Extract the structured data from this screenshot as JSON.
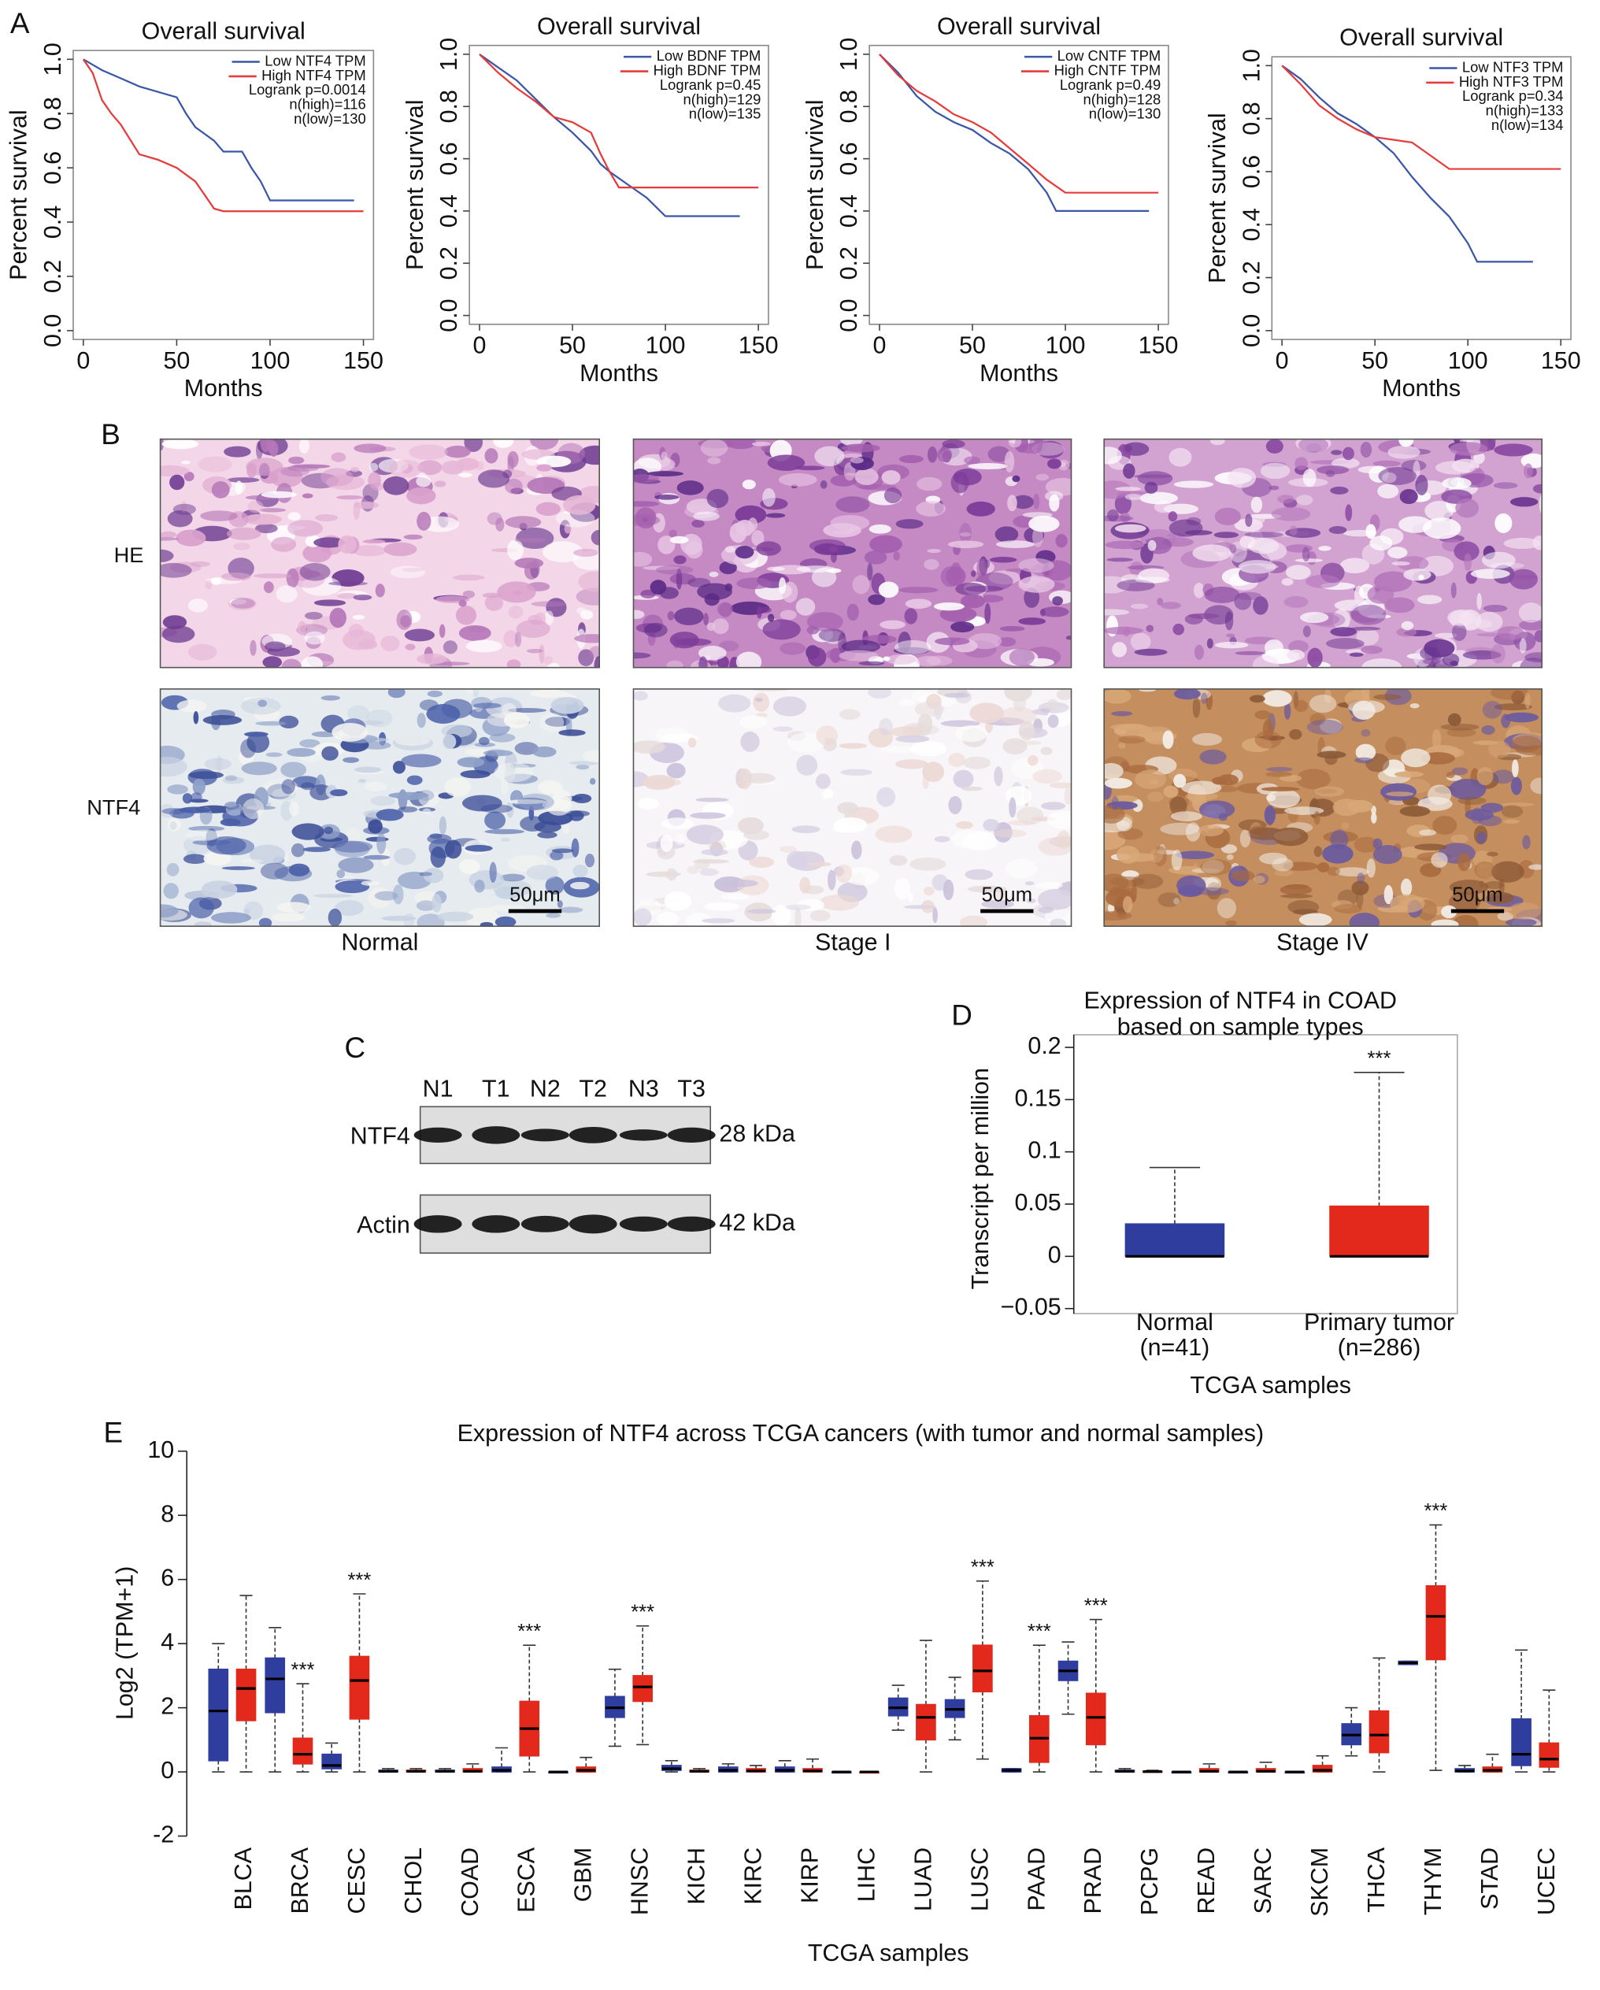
{
  "panel_labels": [
    "A",
    "B",
    "C",
    "D",
    "E"
  ],
  "histology": {
    "rows": [
      "HE",
      "NTF4"
    ],
    "columns": [
      "Normal",
      "Stage I",
      "Stage IV"
    ],
    "scale_bar": "50μm"
  },
  "western_blot": {
    "lanes": [
      "N1",
      "T1",
      "N2",
      "T2",
      "N3",
      "T3"
    ],
    "rows": [
      {
        "label": "NTF4",
        "size": "28 kDa"
      },
      {
        "label": "Actin",
        "size": "42 kDa"
      }
    ]
  },
  "chart_data": [
    {
      "type": "line",
      "title": "Overall survival",
      "xlabel": "Months",
      "ylabel": "Percent survival",
      "xlim": [
        0,
        150
      ],
      "xticks": [
        0,
        50,
        100,
        150
      ],
      "ylim": [
        0,
        1
      ],
      "yticks": [
        {
          "value": 0,
          "label": "0.0"
        },
        0.2,
        0.4,
        0.6,
        0.8,
        {
          "value": 1,
          "label": "1.0"
        }
      ],
      "legend": "upper right",
      "series": [
        {
          "name": "Low NTF4 TPM",
          "color": "#3a56a6",
          "x": [
            0,
            5,
            10,
            20,
            30,
            40,
            50,
            55,
            60,
            70,
            75,
            85,
            90,
            95,
            100,
            145
          ],
          "values": [
            1,
            0.98,
            0.96,
            0.93,
            0.9,
            0.88,
            0.86,
            0.8,
            0.75,
            0.7,
            0.66,
            0.66,
            0.6,
            0.55,
            0.48,
            0.48
          ]
        },
        {
          "name": "High NTF4 TPM",
          "color": "#e63b3b",
          "x": [
            0,
            5,
            10,
            15,
            20,
            30,
            40,
            50,
            60,
            65,
            70,
            75,
            150
          ],
          "values": [
            1,
            0.95,
            0.85,
            0.8,
            0.76,
            0.65,
            0.63,
            0.6,
            0.55,
            0.5,
            0.45,
            0.44,
            0.44
          ]
        }
      ],
      "legend_notes": [
        "Logrank p=0.0014",
        "n(high)=116",
        "n(low)=130"
      ]
    },
    {
      "type": "line",
      "title": "Overall survival",
      "xlabel": "Months",
      "ylabel": "Percent survival",
      "xlim": [
        0,
        150
      ],
      "xticks": [
        0,
        50,
        100,
        150
      ],
      "ylim": [
        0,
        1
      ],
      "yticks": [
        {
          "value": 0,
          "label": "0.0"
        },
        0.2,
        0.4,
        0.6,
        0.8,
        {
          "value": 1,
          "label": "1.0"
        }
      ],
      "legend": "upper right",
      "series": [
        {
          "name": "Low BDNF TPM",
          "color": "#3a56a6",
          "x": [
            0,
            10,
            20,
            30,
            40,
            50,
            60,
            65,
            70,
            80,
            90,
            100,
            140
          ],
          "values": [
            1,
            0.95,
            0.9,
            0.83,
            0.76,
            0.7,
            0.63,
            0.58,
            0.55,
            0.5,
            0.45,
            0.38,
            0.38
          ]
        },
        {
          "name": "High BDNF TPM",
          "color": "#e63b3b",
          "x": [
            0,
            10,
            20,
            30,
            40,
            50,
            60,
            65,
            70,
            75,
            150
          ],
          "values": [
            1,
            0.93,
            0.87,
            0.82,
            0.76,
            0.74,
            0.7,
            0.62,
            0.55,
            0.49,
            0.49
          ]
        }
      ],
      "legend_notes": [
        "Logrank p=0.45",
        "n(high)=129",
        "n(low)=135"
      ]
    },
    {
      "type": "line",
      "title": "Overall survival",
      "xlabel": "Months",
      "ylabel": "Percent survival",
      "xlim": [
        0,
        150
      ],
      "xticks": [
        0,
        50,
        100,
        150
      ],
      "ylim": [
        0,
        1
      ],
      "yticks": [
        {
          "value": 0,
          "label": "0.0"
        },
        0.2,
        0.4,
        0.6,
        0.8,
        {
          "value": 1,
          "label": "1.0"
        }
      ],
      "legend": "upper right",
      "series": [
        {
          "name": "Low CNTF TPM",
          "color": "#3a56a6",
          "x": [
            0,
            10,
            20,
            30,
            40,
            50,
            60,
            70,
            80,
            90,
            95,
            145
          ],
          "values": [
            1,
            0.93,
            0.84,
            0.78,
            0.74,
            0.71,
            0.66,
            0.62,
            0.56,
            0.47,
            0.4,
            0.4
          ]
        },
        {
          "name": "High CNTF TPM",
          "color": "#e63b3b",
          "x": [
            0,
            10,
            20,
            30,
            40,
            50,
            60,
            70,
            80,
            90,
            100,
            150
          ],
          "values": [
            1,
            0.92,
            0.86,
            0.82,
            0.77,
            0.74,
            0.7,
            0.64,
            0.58,
            0.52,
            0.47,
            0.47
          ]
        }
      ],
      "legend_notes": [
        "Logrank p=0.49",
        "n(high)=128",
        "n(low)=130"
      ]
    },
    {
      "type": "line",
      "title": "Overall survival",
      "xlabel": "Months",
      "ylabel": "Percent survival",
      "xlim": [
        0,
        150
      ],
      "xticks": [
        0,
        50,
        100,
        150
      ],
      "ylim": [
        0,
        1
      ],
      "yticks": [
        {
          "value": 0,
          "label": "0.0"
        },
        0.2,
        0.4,
        0.6,
        0.8,
        {
          "value": 1,
          "label": "1.0"
        }
      ],
      "legend": "upper right",
      "series": [
        {
          "name": "Low NTF3 TPM",
          "color": "#3a56a6",
          "x": [
            0,
            10,
            20,
            30,
            40,
            50,
            60,
            70,
            80,
            90,
            95,
            100,
            105,
            135
          ],
          "values": [
            1,
            0.95,
            0.88,
            0.82,
            0.78,
            0.73,
            0.67,
            0.58,
            0.5,
            0.43,
            0.38,
            0.33,
            0.26,
            0.26
          ]
        },
        {
          "name": "High NTF3 TPM",
          "color": "#e63b3b",
          "x": [
            0,
            10,
            20,
            30,
            40,
            50,
            60,
            70,
            80,
            90,
            150
          ],
          "values": [
            1,
            0.93,
            0.85,
            0.8,
            0.76,
            0.73,
            0.72,
            0.71,
            0.66,
            0.61,
            0.61
          ]
        }
      ],
      "legend_notes": [
        "Logrank p=0.34",
        "n(high)=133",
        "n(low)=134"
      ]
    },
    {
      "type": "box",
      "title": [
        "Expression of NTF4 in COAD",
        "based on sample types"
      ],
      "ylabel": "Transcript per million",
      "xlabel": "TCGA samples",
      "categories": [
        "Normal",
        "Primary tumor"
      ],
      "category_counts": [
        "(n=41)",
        "(n=286)"
      ],
      "ylim": [
        -0.05,
        0.2
      ],
      "yticks": [
        {
          "value": -0.05,
          "label": "−0.05"
        },
        0,
        0.05,
        0.1,
        0.15,
        0.2
      ],
      "series": [
        {
          "colors": [
            "#2f3e9e",
            "#e2291b"
          ],
          "min": [
            0,
            0
          ],
          "q1": [
            0,
            0
          ],
          "median": [
            0,
            0
          ],
          "q3": [
            0.031,
            0.048
          ],
          "max": [
            0.085,
            0.176
          ]
        }
      ],
      "significance": [
        null,
        "***"
      ]
    },
    {
      "type": "box",
      "title": "Expression of NTF4 across TCGA cancers (with tumor and normal samples)",
      "ylabel": "Log2 (TPM+1)",
      "xlabel": "TCGA samples",
      "categories": [
        "BLCA",
        "BRCA",
        "CESC",
        "CHOL",
        "COAD",
        "ESCA",
        "GBM",
        "HNSC",
        "KICH",
        "KIRC",
        "KIRP",
        "LIHC",
        "LUAD",
        "LUSC",
        "PAAD",
        "PRAD",
        "PCPG",
        "READ",
        "SARC",
        "SKCM",
        "THCA",
        "THYM",
        "STAD",
        "UCEC"
      ],
      "ylim": [
        -2,
        10
      ],
      "yticks": [
        -2,
        0,
        2,
        4,
        6,
        8,
        10
      ],
      "series": [
        {
          "color": "#2f3e9e",
          "min": [
            0,
            0,
            0,
            0,
            0,
            0,
            0,
            0.8,
            0,
            0,
            0,
            0,
            1.3,
            1.0,
            0,
            1.8,
            0,
            0,
            0,
            0,
            0.5,
            3.35,
            0,
            0
          ],
          "q1": [
            0.35,
            1.85,
            0.1,
            0,
            0,
            0,
            0,
            1.7,
            0.05,
            0,
            0,
            0,
            1.75,
            1.7,
            0,
            2.85,
            0,
            0,
            0,
            0,
            0.85,
            3.35,
            0,
            0.2
          ],
          "median": [
            1.9,
            2.9,
            0.2,
            0.02,
            0.02,
            0.05,
            0,
            2.0,
            0.1,
            0.05,
            0.05,
            0,
            2.0,
            1.95,
            0.05,
            3.15,
            0.02,
            0,
            0,
            0,
            1.15,
            3.4,
            0.03,
            0.55
          ],
          "q3": [
            3.2,
            3.55,
            0.55,
            0.05,
            0.05,
            0.15,
            0,
            2.35,
            0.2,
            0.15,
            0.15,
            0,
            2.3,
            2.25,
            0.1,
            3.45,
            0.05,
            0,
            0,
            0,
            1.5,
            3.45,
            0.1,
            1.65
          ],
          "max": [
            4.0,
            4.5,
            0.9,
            0.1,
            0.1,
            0.75,
            0,
            3.2,
            0.35,
            0.25,
            0.35,
            0,
            2.7,
            2.95,
            0.1,
            4.05,
            0.1,
            0,
            0,
            0,
            2.0,
            3.45,
            0.2,
            3.8
          ]
        },
        {
          "color": "#e2291b",
          "min": [
            0,
            0,
            0,
            0,
            0,
            0,
            0,
            0.85,
            0,
            0,
            0,
            0,
            0,
            0.4,
            0,
            0,
            0,
            0,
            0,
            0,
            0,
            0.05,
            0,
            0
          ],
          "q1": [
            1.6,
            0.25,
            1.65,
            0,
            0,
            0.5,
            0,
            2.2,
            0,
            0,
            0,
            0,
            1.0,
            2.5,
            0.3,
            0.85,
            0,
            0,
            0,
            0,
            0.6,
            3.5,
            0,
            0.15
          ],
          "median": [
            2.6,
            0.55,
            2.85,
            0.02,
            0.02,
            1.35,
            0.05,
            2.65,
            0.02,
            0.03,
            0.03,
            0,
            1.7,
            3.15,
            1.05,
            1.7,
            0.01,
            0.02,
            0.02,
            0.05,
            1.15,
            4.85,
            0.05,
            0.4
          ],
          "q3": [
            3.2,
            1.05,
            3.6,
            0.05,
            0.1,
            2.2,
            0.15,
            3.0,
            0.05,
            0.1,
            0.1,
            0,
            2.1,
            3.95,
            1.75,
            2.45,
            0.02,
            0.1,
            0.1,
            0.2,
            1.9,
            5.8,
            0.15,
            0.9
          ],
          "max": [
            5.5,
            2.75,
            5.55,
            0.1,
            0.25,
            3.95,
            0.45,
            4.55,
            0.1,
            0.2,
            0.4,
            0,
            4.1,
            5.95,
            3.95,
            4.75,
            0.05,
            0.25,
            0.3,
            0.5,
            3.55,
            7.7,
            0.55,
            2.55
          ]
        }
      ],
      "significance": [
        null,
        "***",
        "***",
        null,
        null,
        "***",
        null,
        "***",
        null,
        null,
        null,
        null,
        null,
        "***",
        "***",
        "***",
        null,
        null,
        null,
        null,
        null,
        "***",
        null,
        null
      ]
    }
  ]
}
